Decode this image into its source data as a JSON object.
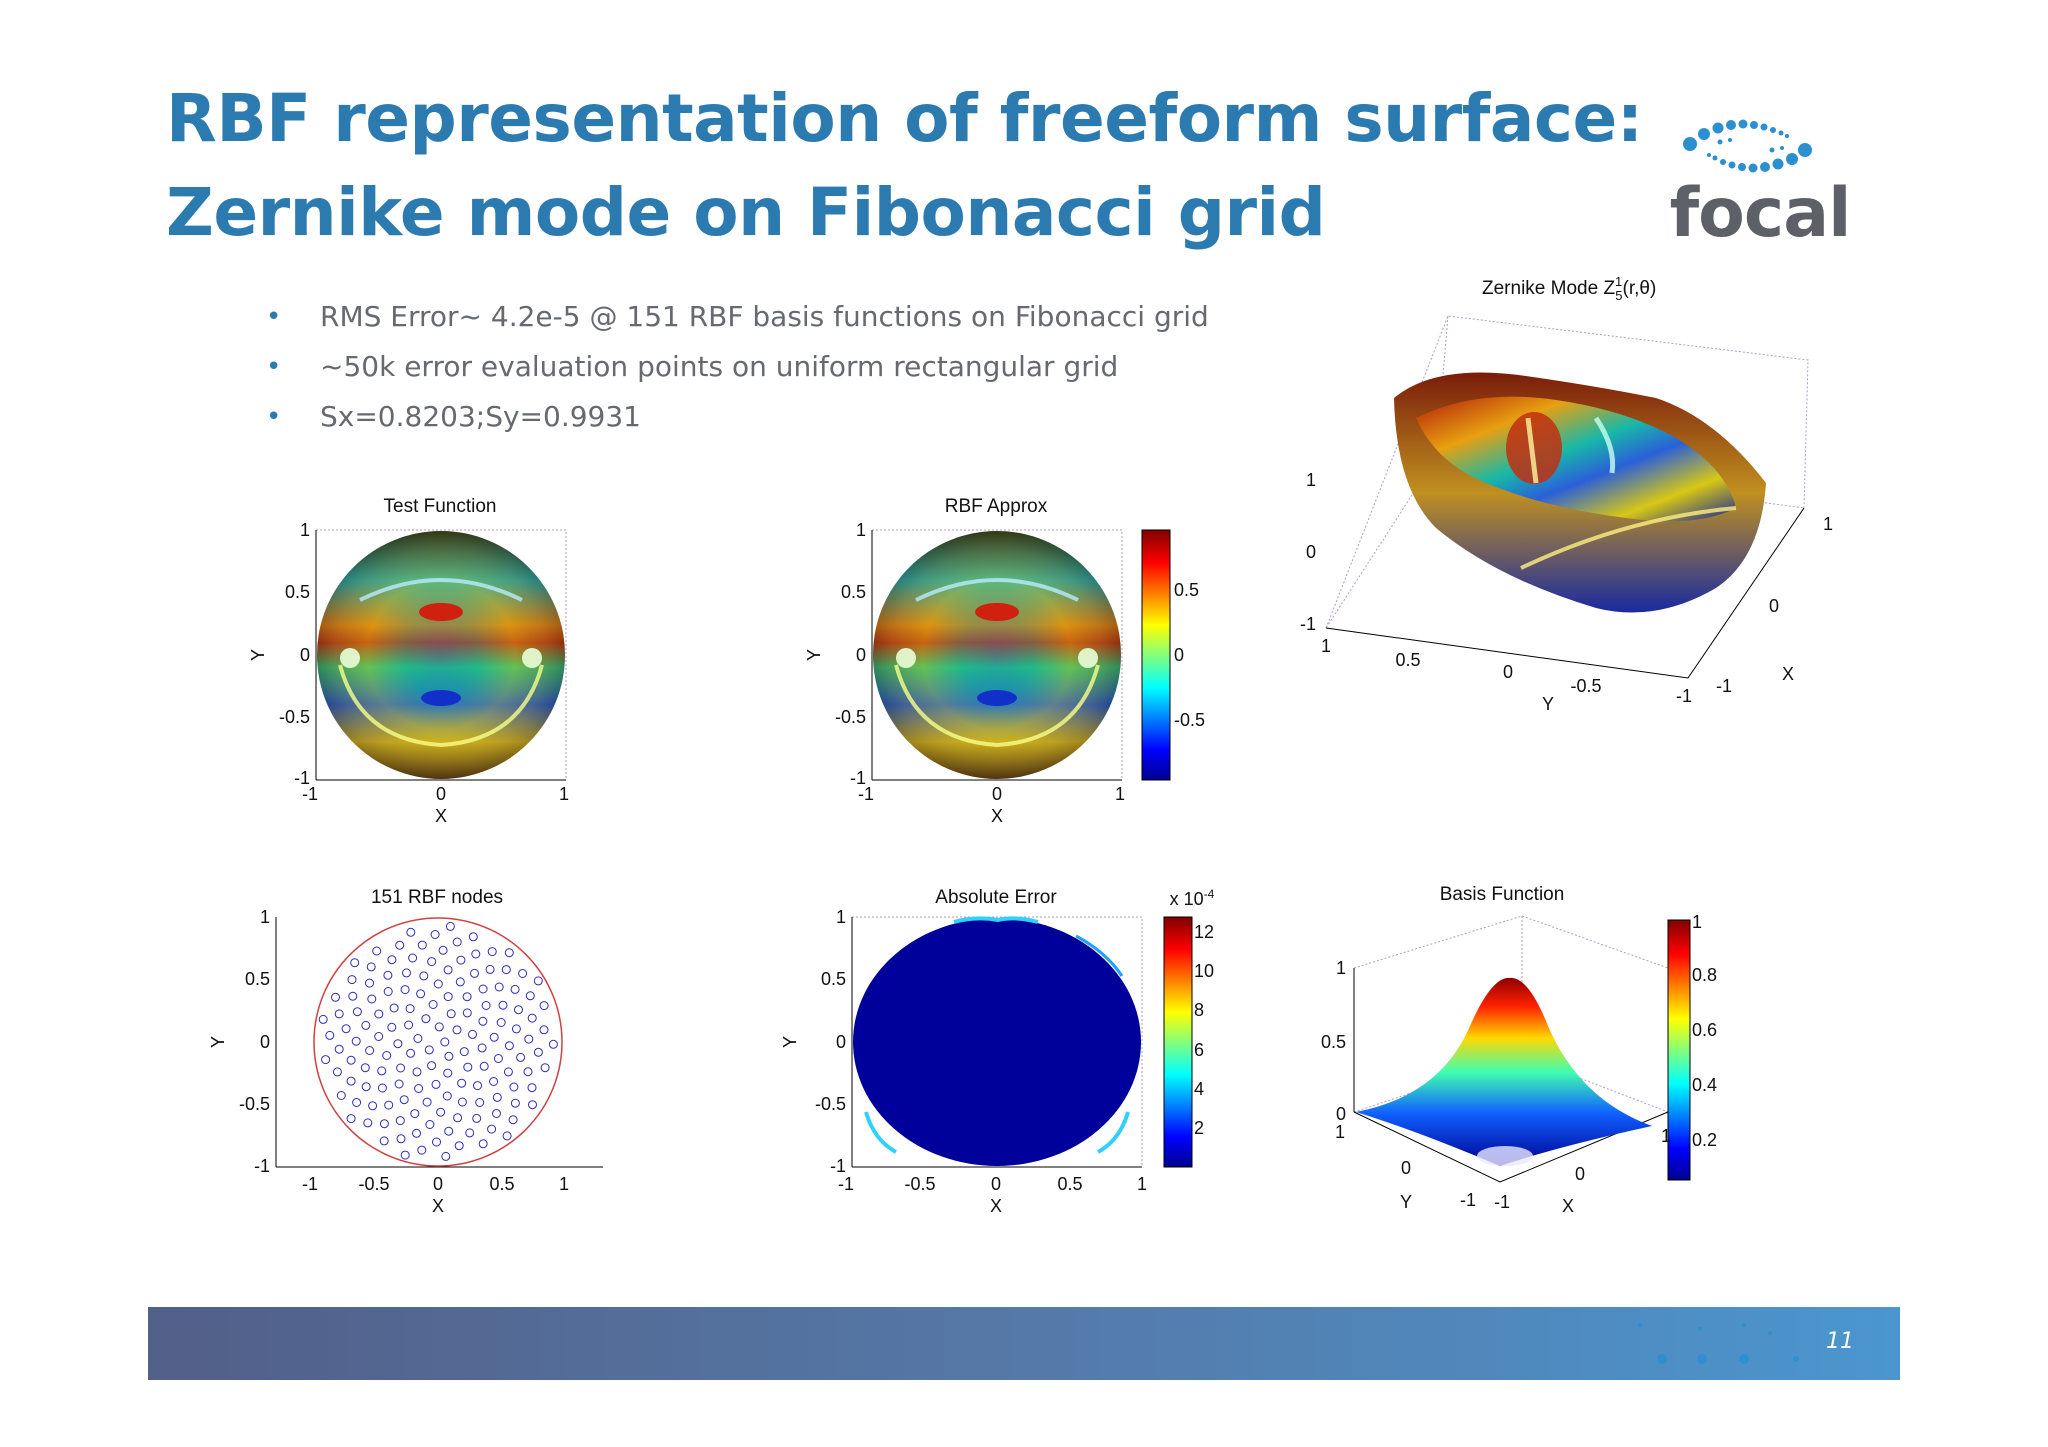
{
  "slide": {
    "title_line1": "RBF representation of freeform surface:",
    "title_line2": "Zernike mode on Fibonacci grid",
    "logo_text": "focal",
    "page_number": "11",
    "accent_color": "#2c7bb0",
    "footer_colors": [
      "#525f88",
      "#4b96cf"
    ]
  },
  "bullets": [
    {
      "text": "RMS Error~ 4.2e-5 @ 151 RBF basis functions on Fibonacci grid"
    },
    {
      "text": "~50k error evaluation points on uniform rectangular  grid"
    },
    {
      "text": "Sx=0.8203;Sy=0.9931"
    }
  ],
  "chart_data": [
    {
      "type": "heatmap",
      "title": "Test Function",
      "xlabel": "X",
      "ylabel": "Y",
      "xticks": [
        "-1",
        "0",
        "1"
      ],
      "yticks": [
        "1",
        "0.5",
        "0",
        "-0.5",
        "-1"
      ]
    },
    {
      "type": "heatmap",
      "title": "RBF Approx",
      "xlabel": "X",
      "ylabel": "Y",
      "xticks": [
        "-1",
        "0",
        "1"
      ],
      "yticks": [
        "1",
        "0.5",
        "0",
        "-0.5",
        "-1"
      ],
      "colorbar_ticks": [
        "0.5",
        "0",
        "-0.5"
      ],
      "colormap": "jet"
    },
    {
      "type": "surface",
      "title_main": "Zernike Mode Z",
      "title_sup": "1",
      "title_sub": "5",
      "title_tail": "(r,θ)",
      "xlabel": "X",
      "ylabel": "Y",
      "zticks": [
        "1",
        "0",
        "-1"
      ],
      "yticks": [
        "1",
        "0.5",
        "0",
        "-0.5",
        "-1"
      ],
      "xticks": [
        "1",
        "0",
        "-1"
      ]
    },
    {
      "type": "scatter",
      "title": "151 RBF nodes",
      "xlabel": "X",
      "ylabel": "Y",
      "xticks": [
        "-1",
        "-0.5",
        "0",
        "0.5",
        "1"
      ],
      "yticks": [
        "1",
        "0.5",
        "0",
        "-0.5",
        "-1"
      ],
      "node_count": 151,
      "marker_color": "#2d2dbb",
      "boundary_color": "#d04040"
    },
    {
      "type": "heatmap",
      "title": "Absolute Error",
      "xlabel": "X",
      "ylabel": "Y",
      "xticks": [
        "-1",
        "-0.5",
        "0",
        "0.5",
        "1"
      ],
      "yticks": [
        "1",
        "0.5",
        "0",
        "-0.5",
        "-1"
      ],
      "colorbar_scale": "x 10",
      "colorbar_exponent": "-4",
      "colorbar_ticks": [
        "12",
        "10",
        "8",
        "6",
        "4",
        "2"
      ],
      "colormap": "jet"
    },
    {
      "type": "surface",
      "title": "Basis Function",
      "xlabel": "X",
      "ylabel": "Y",
      "zticks": [
        "1",
        "0.5",
        "0"
      ],
      "yticks": [
        "1",
        "0",
        "-1"
      ],
      "xticks": [
        "-1",
        "0",
        "1"
      ],
      "colorbar_ticks": [
        "1",
        "0.8",
        "0.6",
        "0.4",
        "0.2"
      ],
      "colormap": "jet"
    }
  ]
}
